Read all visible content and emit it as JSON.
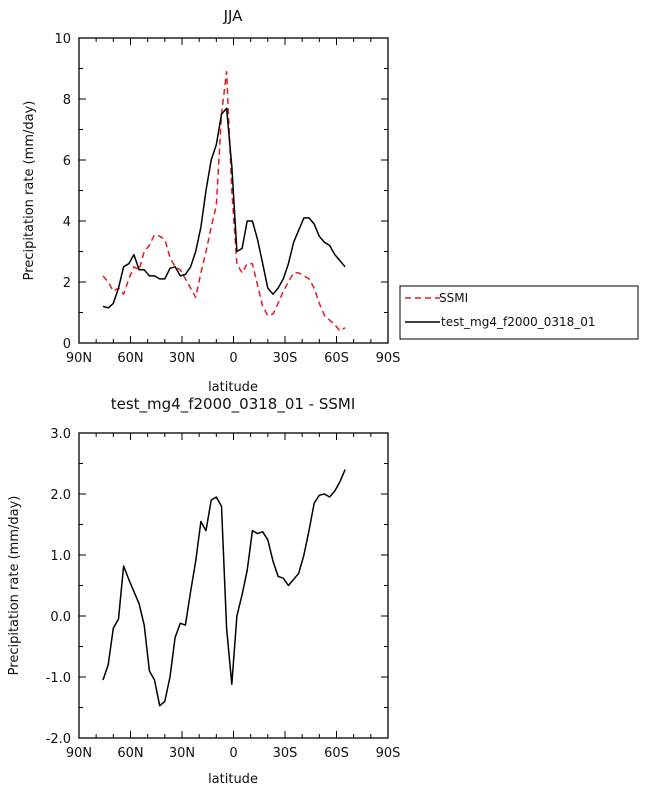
{
  "chart_data": [
    {
      "type": "line",
      "title": "JJA",
      "xlabel": "latitude",
      "ylabel": "Precipitation rate (mm/day)",
      "xlim": [
        90,
        -90
      ],
      "ylim": [
        0,
        10
      ],
      "xticks": [
        90,
        60,
        30,
        0,
        -30,
        -60,
        -90
      ],
      "xtick_labels": [
        "90N",
        "60N",
        "30N",
        "0",
        "30S",
        "60S",
        "90S"
      ],
      "yticks": [
        0,
        2,
        4,
        6,
        8,
        10
      ],
      "ytick_labels": [
        "0",
        "2",
        "4",
        "6",
        "8",
        "10"
      ],
      "legend_position": "outside-right",
      "series": [
        {
          "name": "SSMI",
          "color": "#e8191e",
          "dash": "dashed",
          "x": [
            76,
            73,
            70,
            67,
            64,
            61,
            58,
            55,
            52,
            49,
            46,
            43,
            40,
            37,
            34,
            31,
            28,
            25,
            22,
            19,
            16,
            13,
            10,
            7,
            4,
            1,
            -2,
            -5,
            -8,
            -11,
            -14,
            -17,
            -20,
            -23,
            -26,
            -29,
            -32,
            -35,
            -38,
            -41,
            -44,
            -47,
            -50,
            -53,
            -56,
            -59,
            -62,
            -65
          ],
          "y": [
            2.2,
            2.0,
            1.7,
            1.8,
            1.6,
            2.1,
            2.5,
            2.4,
            3.0,
            3.2,
            3.55,
            3.5,
            3.4,
            2.8,
            2.5,
            2.4,
            2.1,
            1.8,
            1.5,
            2.3,
            3.0,
            3.8,
            4.5,
            7.5,
            8.9,
            5.0,
            2.6,
            2.3,
            2.6,
            2.6,
            1.9,
            1.2,
            0.9,
            0.95,
            1.3,
            1.7,
            2.0,
            2.3,
            2.3,
            2.2,
            2.1,
            1.8,
            1.3,
            0.9,
            0.75,
            0.6,
            0.4,
            0.5
          ]
        },
        {
          "name": "test_mg4_f2000_0318_01",
          "color": "#000000",
          "dash": "solid",
          "x": [
            76,
            73,
            70,
            67,
            64,
            61,
            58,
            55,
            52,
            49,
            46,
            43,
            40,
            37,
            34,
            31,
            28,
            25,
            22,
            19,
            16,
            13,
            10,
            7,
            4,
            1,
            -2,
            -5,
            -8,
            -11,
            -14,
            -17,
            -20,
            -23,
            -26,
            -29,
            -32,
            -35,
            -38,
            -41,
            -44,
            -47,
            -50,
            -53,
            -56,
            -59,
            -62,
            -65
          ],
          "y": [
            1.2,
            1.15,
            1.3,
            1.8,
            2.5,
            2.6,
            2.9,
            2.4,
            2.4,
            2.2,
            2.2,
            2.1,
            2.1,
            2.45,
            2.5,
            2.2,
            2.25,
            2.5,
            3.0,
            3.8,
            5.0,
            6.0,
            6.5,
            7.5,
            7.7,
            5.8,
            3.0,
            3.1,
            4.0,
            4.0,
            3.4,
            2.6,
            1.8,
            1.6,
            1.8,
            2.1,
            2.6,
            3.3,
            3.7,
            4.1,
            4.1,
            3.9,
            3.5,
            3.3,
            3.2,
            2.9,
            2.7,
            2.5
          ]
        }
      ]
    },
    {
      "type": "line",
      "title": "test_mg4_f2000_0318_01 - SSMI",
      "xlabel": "latitude",
      "ylabel": "Precipitation rate (mm/day)",
      "xlim": [
        90,
        -90
      ],
      "ylim": [
        -2,
        3
      ],
      "xticks": [
        90,
        60,
        30,
        0,
        -30,
        -60,
        -90
      ],
      "xtick_labels": [
        "90N",
        "60N",
        "30N",
        "0",
        "30S",
        "60S",
        "90S"
      ],
      "yticks": [
        -2,
        -1,
        0,
        1,
        2,
        3
      ],
      "ytick_labels": [
        "-2.0",
        "-1.0",
        "0.0",
        "1.0",
        "2.0",
        "3.0"
      ],
      "series": [
        {
          "color": "#000000",
          "dash": "solid",
          "x": [
            76,
            73,
            70,
            67,
            64,
            61,
            58,
            55,
            52,
            49,
            46,
            43,
            40,
            37,
            34,
            31,
            28,
            25,
            22,
            19,
            16,
            13,
            10,
            7,
            4,
            1,
            -2,
            -5,
            -8,
            -11,
            -14,
            -17,
            -20,
            -23,
            -26,
            -29,
            -32,
            -35,
            -38,
            -41,
            -44,
            -47,
            -50,
            -53,
            -56,
            -59,
            -62,
            -65
          ],
          "y": [
            -1.05,
            -0.8,
            -0.2,
            -0.05,
            0.82,
            0.6,
            0.4,
            0.2,
            -0.15,
            -0.9,
            -1.05,
            -1.47,
            -1.4,
            -1.0,
            -0.35,
            -0.12,
            -0.15,
            0.4,
            0.9,
            1.55,
            1.4,
            1.9,
            1.95,
            1.8,
            -0.2,
            -1.12,
            0.0,
            0.35,
            0.75,
            1.4,
            1.35,
            1.38,
            1.25,
            0.9,
            0.65,
            0.62,
            0.5,
            0.6,
            0.7,
            1.0,
            1.4,
            1.85,
            1.98,
            2.0,
            1.95,
            2.05,
            2.2,
            2.4
          ]
        }
      ]
    }
  ]
}
